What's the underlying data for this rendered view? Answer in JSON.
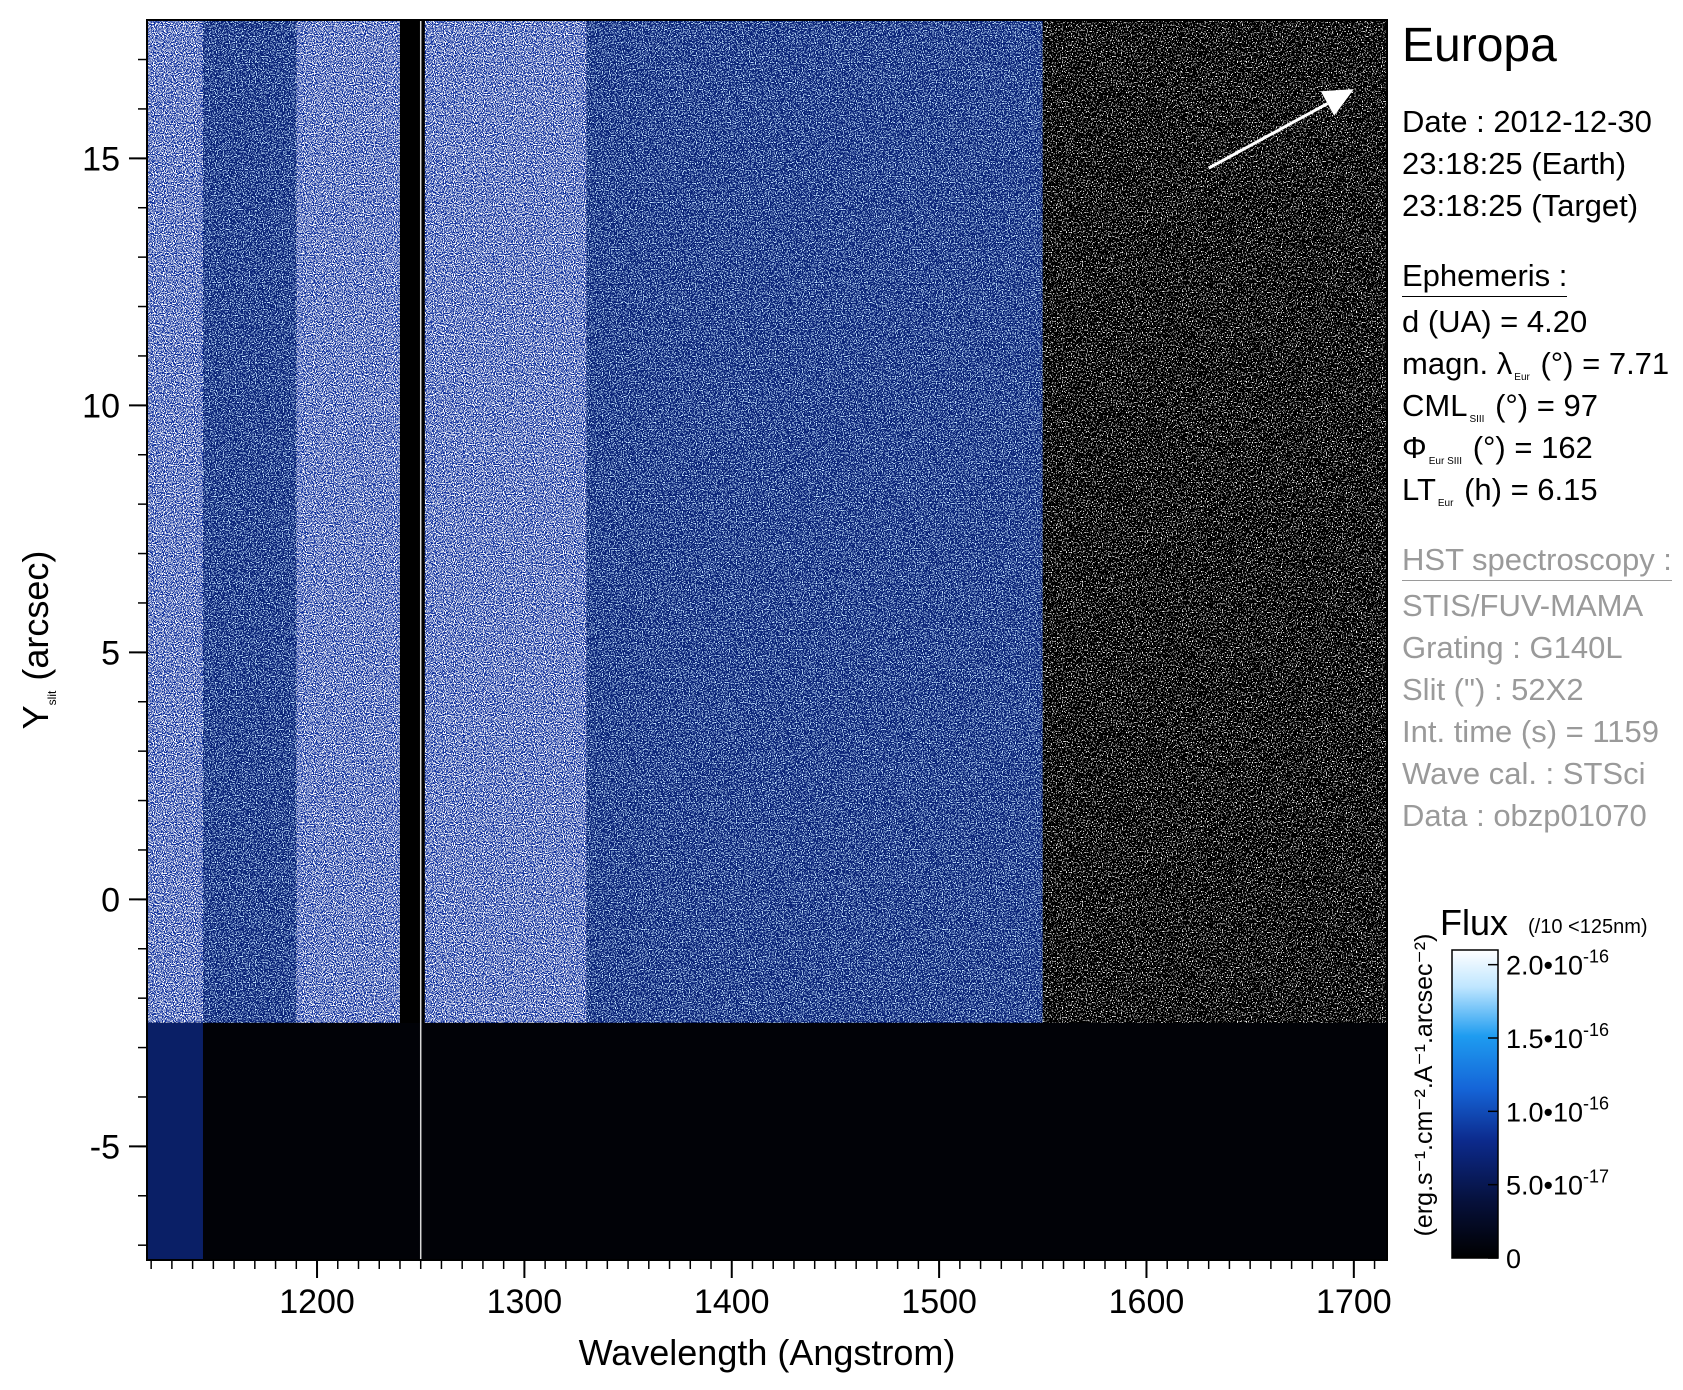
{
  "chart_data": {
    "type": "heatmap",
    "title": "Europa",
    "xlabel": "Wavelength (Angstrom)",
    "ylabel": {
      "main": "Y",
      "sub": "slit",
      "rest": " (arcsec)"
    },
    "xlim": [
      1118,
      1716
    ],
    "ylim": [
      -7.3,
      17.8
    ],
    "x_ticks": [
      1200,
      1300,
      1400,
      1500,
      1600,
      1700
    ],
    "x_tick_labels": [
      "1200",
      "1300",
      "1400",
      "1500",
      "1600",
      "1700"
    ],
    "y_ticks": [
      -5,
      0,
      5,
      10,
      15
    ],
    "y_tick_labels": [
      "-5",
      "0",
      "5",
      "10",
      "15"
    ],
    "y_minor_step": 1,
    "x_minor_step": 10,
    "calibration_line_x": 1250,
    "data_boundary_y": -2.5,
    "bright_bands": [
      {
        "x_range": [
          1118,
          1145
        ],
        "level": "high"
      },
      {
        "x_range": [
          1145,
          1190
        ],
        "level": "mid"
      },
      {
        "x_range": [
          1190,
          1240
        ],
        "level": "high"
      },
      {
        "x_range": [
          1252,
          1330
        ],
        "level": "high"
      },
      {
        "x_range": [
          1330,
          1550
        ],
        "level": "mid"
      },
      {
        "x_range": [
          1550,
          1716
        ],
        "level": "sparse"
      }
    ],
    "colorbar": {
      "title": "Flux",
      "note": "(/10 <125nm)",
      "unit_label": "(erg.s⁻¹.cm⁻².A⁻¹.arcsec⁻²)",
      "range": [
        0,
        2.1e-16
      ],
      "ticks": [
        {
          "value": 0,
          "label": "0",
          "exp": ""
        },
        {
          "value": 5e-17,
          "label": "5.0•10",
          "exp": "-17"
        },
        {
          "value": 1e-16,
          "label": "1.0•10",
          "exp": "-16"
        },
        {
          "value": 1.5e-16,
          "label": "1.5•10",
          "exp": "-16"
        },
        {
          "value": 2e-16,
          "label": "2.0•10",
          "exp": "-16"
        }
      ],
      "colors": [
        "#000000",
        "#06103a",
        "#0c2a8c",
        "#1565d8",
        "#1e9cf0",
        "#bfe6ff",
        "#ffffff"
      ]
    },
    "arrow": {
      "from": [
        1630,
        14.8
      ],
      "to": [
        1700,
        16.4
      ],
      "color": "#ffffff"
    }
  },
  "side_panel": {
    "title": "Europa",
    "date_lines": [
      "Date : 2012-12-30",
      "23:18:25 (Earth)",
      "23:18:25 (Target)"
    ],
    "ephemeris_heading": "Ephemeris :",
    "ephemeris": [
      {
        "pre": "d (UA)     = 4.20",
        "sub": "",
        "post": ""
      },
      {
        "pre": "magn. λ",
        "sub": "Eur",
        "post": " (°)  = 7.71"
      },
      {
        "pre": "CML",
        "sub": "SIII",
        "post": " (°) = 97"
      },
      {
        "pre": "Φ",
        "sub": "Eur SIII",
        "post": " (°) = 162"
      },
      {
        "pre": "LT",
        "sub": "Eur",
        "post": " (h) = 6.15"
      }
    ],
    "hst_heading": "HST spectroscopy :",
    "hst": [
      "STIS/FUV-MAMA",
      "Grating : G140L",
      "Slit (\") : 52X2",
      "Int. time (s) = 1159",
      "Wave cal. : STSci",
      "Data : obzp01070"
    ]
  }
}
